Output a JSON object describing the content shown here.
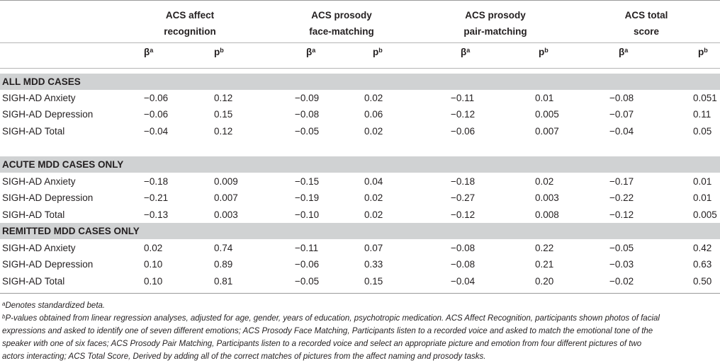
{
  "columns": [
    {
      "line1": "ACS affect",
      "line2": "recognition"
    },
    {
      "line1": "ACS prosody",
      "line2": "face-matching"
    },
    {
      "line1": "ACS prosody",
      "line2": "pair-matching"
    },
    {
      "line1": "ACS total",
      "line2": "score"
    }
  ],
  "sub": {
    "beta": "β",
    "beta_sup": "a",
    "p": "p",
    "p_sup": "b"
  },
  "sections": [
    {
      "title": "ALL MDD CASES",
      "rows": [
        {
          "label": "SIGH-AD Anxiety",
          "v": [
            "−0.06",
            "0.12",
            "−0.09",
            "0.02",
            "−0.11",
            "0.01",
            "−0.08",
            "0.051"
          ]
        },
        {
          "label": "SIGH-AD Depression",
          "v": [
            "−0.06",
            "0.15",
            "−0.08",
            "0.06",
            "−0.12",
            "0.005",
            "−0.07",
            "0.11"
          ]
        },
        {
          "label": "SIGH-AD Total",
          "v": [
            "−0.04",
            "0.12",
            "−0.05",
            "0.02",
            "−0.06",
            "0.007",
            "−0.04",
            "0.05"
          ]
        }
      ]
    },
    {
      "title": "ACUTE MDD CASES ONLY",
      "rows": [
        {
          "label": "SIGH-AD Anxiety",
          "v": [
            "−0.18",
            "0.009",
            "−0.15",
            "0.04",
            "−0.18",
            "0.02",
            "−0.17",
            "0.01"
          ]
        },
        {
          "label": "SIGH-AD Depression",
          "v": [
            "−0.21",
            "0.007",
            "−0.19",
            "0.02",
            "−0.27",
            "0.003",
            "−0.22",
            "0.01"
          ]
        },
        {
          "label": "SIGH-AD Total",
          "v": [
            "−0.13",
            "0.003",
            "−0.10",
            "0.02",
            "−0.12",
            "0.008",
            "−0.12",
            "0.005"
          ]
        }
      ]
    },
    {
      "title": "REMITTED MDD CASES ONLY",
      "rows": [
        {
          "label": "SIGH-AD Anxiety",
          "v": [
            "0.02",
            "0.74",
            "−0.11",
            "0.07",
            "−0.08",
            "0.22",
            "−0.05",
            "0.42"
          ]
        },
        {
          "label": "SIGH-AD Depression",
          "v": [
            "0.10",
            "0.89",
            "−0.06",
            "0.33",
            "−0.08",
            "0.21",
            "−0.03",
            "0.63"
          ]
        },
        {
          "label": "SIGH-AD Total",
          "v": [
            "0.10",
            "0.81",
            "−0.05",
            "0.15",
            "−0.04",
            "0.20",
            "−0.02",
            "0.50"
          ]
        }
      ]
    }
  ],
  "footnotes": {
    "a_mark": "a",
    "a_text": "Denotes standardized beta.",
    "b_mark": "b",
    "b_line1": "P-values obtained from linear regression analyses, adjusted for age, gender, years of education, psychotropic medication. ACS Affect Recognition, participants shown photos of facial",
    "b_line2": "expressions and asked to identify one of seven different emotions; ACS Prosody Face Matching, Participants listen to a recorded voice and asked to match the emotional tone of the",
    "b_line3": "speaker with one of six faces; ACS Prosody Pair Matching, Participants listen to a recorded voice and select an appropriate picture and emotion from four different pictures of two",
    "b_line4": "actors interacting; ACS Total Score, Derived by adding all of the correct matches of pictures from the affect naming and prosody tasks."
  }
}
